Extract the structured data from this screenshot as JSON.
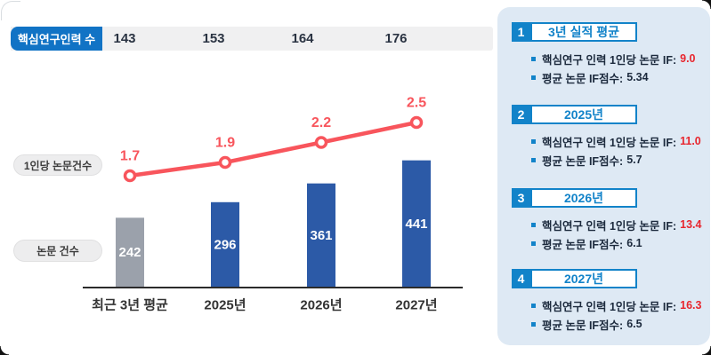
{
  "header_row": {
    "label": "핵심연구인력 수",
    "values": [
      "143",
      "153",
      "164",
      "176"
    ]
  },
  "chart_data": {
    "type": "bar",
    "combo": "bar+line",
    "categories": [
      "최근 3년 평균",
      "2025년",
      "2026년",
      "2027년"
    ],
    "series": [
      {
        "name": "논문 건수",
        "type": "bar",
        "values": [
          242,
          296,
          361,
          441
        ]
      },
      {
        "name": "1인당 논문건수",
        "type": "line",
        "values": [
          1.7,
          1.9,
          2.2,
          2.5
        ]
      },
      {
        "name": "핵심연구인력 수",
        "type": "header-row",
        "values": [
          143,
          153,
          164,
          176
        ]
      }
    ],
    "title": "",
    "xlabel": "",
    "ylabel": "",
    "grid": false,
    "legend_position": "left",
    "bar_value_labels": [
      "242",
      "296",
      "361",
      "441"
    ],
    "line_value_labels": [
      "1.7",
      "1.9",
      "2.2",
      "2.5"
    ]
  },
  "panel": {
    "sections": [
      {
        "num": "1",
        "title": "3년 실적 평균",
        "items": [
          {
            "label": "핵심연구 인력 1인당 논문 IF:",
            "value": "9.0",
            "highlight": true
          },
          {
            "label": "평균 논문 IF점수:",
            "value": "5.34",
            "highlight": false
          }
        ]
      },
      {
        "num": "2",
        "title": "2025년",
        "items": [
          {
            "label": "핵심연구 인력 1인당 논문 IF:",
            "value": "11.0",
            "highlight": true
          },
          {
            "label": "평균 논문 IF점수:",
            "value": "5.7",
            "highlight": false
          }
        ]
      },
      {
        "num": "3",
        "title": "2026년",
        "items": [
          {
            "label": "핵심연구 인력 1인당 논문 IF:",
            "value": "13.4",
            "highlight": true
          },
          {
            "label": "평균 논문 IF점수:",
            "value": "6.1",
            "highlight": false
          }
        ]
      },
      {
        "num": "4",
        "title": "2027년",
        "items": [
          {
            "label": "핵심연구 인력 1인당 논문 IF:",
            "value": "16.3",
            "highlight": true
          },
          {
            "label": "평균 논문 IF점수:",
            "value": "6.5",
            "highlight": false
          }
        ]
      }
    ]
  },
  "colors": {
    "badge_blue": "#1173c5",
    "accent_blue": "#1283c9",
    "bar_blue": "#2c5aa7",
    "bar_gray": "#9ba1ab",
    "line_red": "#f8555c",
    "value_red": "#e8262e",
    "panel_bg": "#dee9f4",
    "strip_bg": "#f0f0f1",
    "axis_dark": "#2b2b2b",
    "text_dark": "#1c2a3d"
  }
}
